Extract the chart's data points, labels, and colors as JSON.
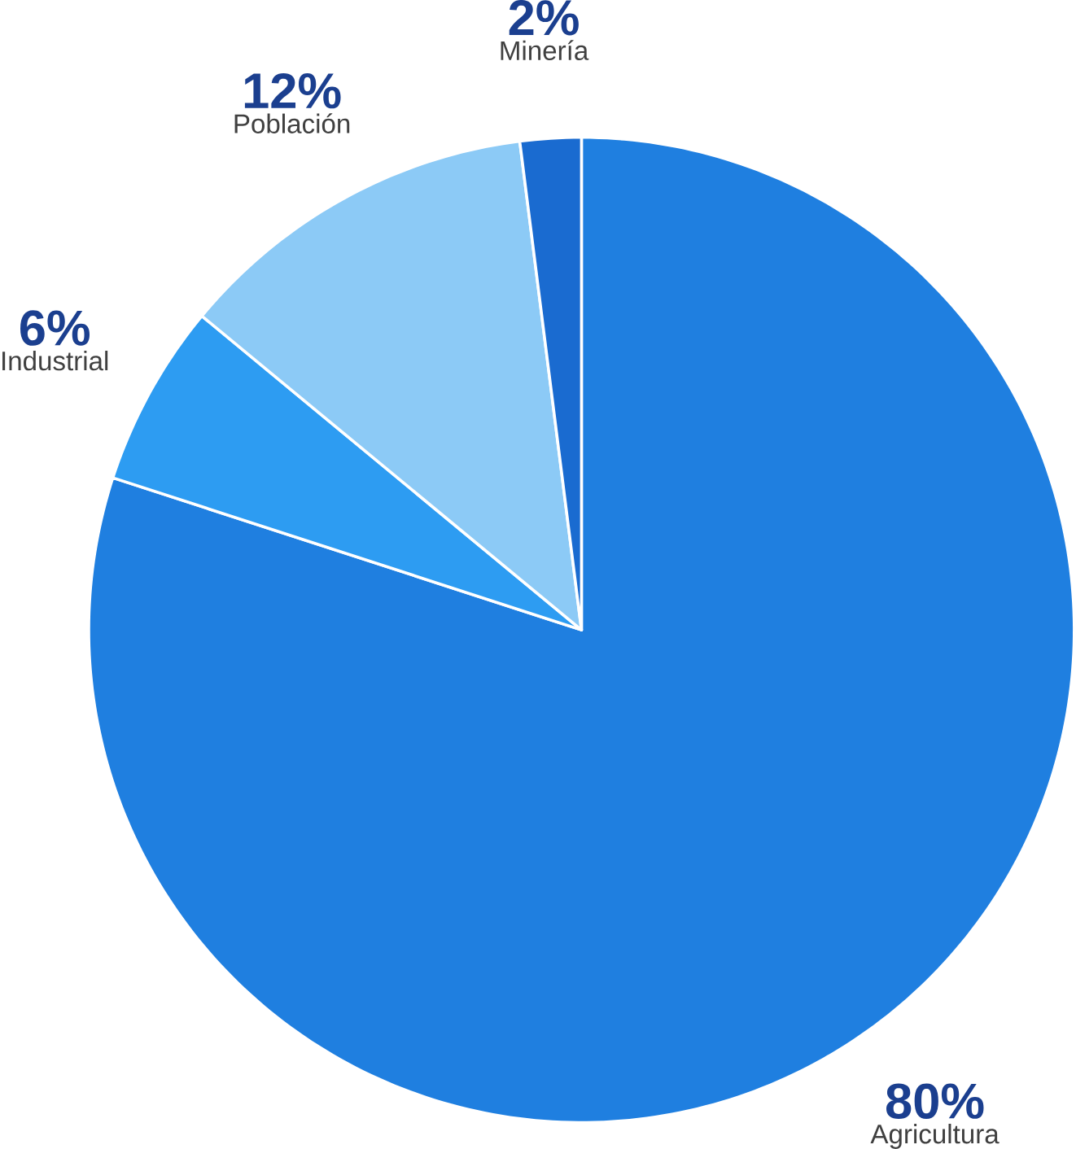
{
  "chart_data": {
    "type": "pie",
    "categories": [
      "Agricultura",
      "Industrial",
      "Población",
      "Minería"
    ],
    "values": [
      80,
      6,
      12,
      2
    ],
    "colors": [
      "#1f7fe0",
      "#2d9cf2",
      "#8ccaf6",
      "#1a6bd0"
    ],
    "value_labels": [
      "80%",
      "6%",
      "12%",
      "2%"
    ]
  }
}
